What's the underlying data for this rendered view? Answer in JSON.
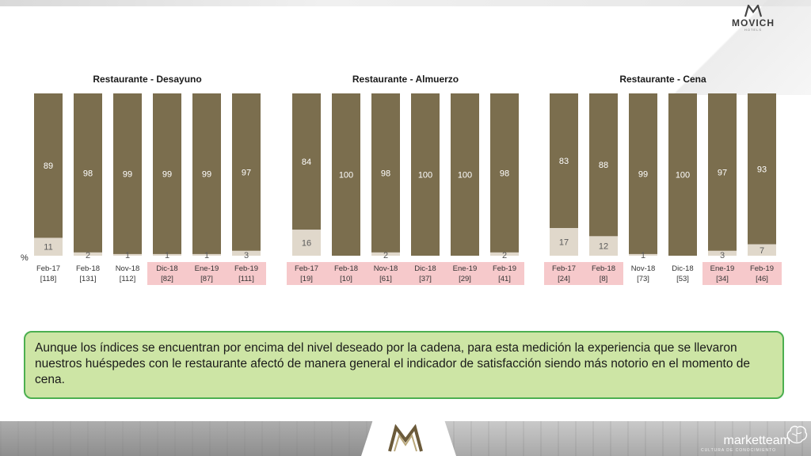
{
  "logo": {
    "brand": "MOVICH",
    "sub": "HOTELS"
  },
  "percent_symbol": "%",
  "footer": {
    "brand": "marketteam",
    "sub": "CULTURA DE CONOCIMIENTO"
  },
  "callout": {
    "text": "Aunque los índices se encuentran por encima del nivel deseado por la cadena, para esta medición la experiencia que se llevaron nuestros huéspedes con le restaurante afectó de manera general el indicador de satisfacción siendo más notorio en el momento de cena."
  },
  "colors": {
    "top": "#7b6e4e",
    "bottom": "#e0d8cb",
    "highlight": "#f6c9cb",
    "callout_bg": "#cde5a5",
    "callout_border": "#4caf50"
  },
  "chart_data": [
    {
      "type": "bar",
      "stacked": true,
      "title": "Restaurante - Desayuno",
      "categories": [
        "Feb-17",
        "Feb-18",
        "Nov-18",
        "Dic-18",
        "Ene-19",
        "Feb-19"
      ],
      "n_labels": [
        "[118]",
        "[131]",
        "[112]",
        "[82]",
        "[87]",
        "[111]"
      ],
      "highlighted": [
        false,
        false,
        false,
        true,
        true,
        true
      ],
      "series": [
        {
          "values": [
            89,
            98,
            99,
            99,
            99,
            97
          ]
        },
        {
          "values": [
            11,
            2,
            1,
            1,
            1,
            3
          ]
        }
      ],
      "ylim": [
        0,
        100
      ]
    },
    {
      "type": "bar",
      "stacked": true,
      "title": "Restaurante - Almuerzo",
      "categories": [
        "Feb-17",
        "Feb-18",
        "Nov-18",
        "Dic-18",
        "Ene-19",
        "Feb-19"
      ],
      "n_labels": [
        "[19]",
        "[10]",
        "[61]",
        "[37]",
        "[29]",
        "[41]"
      ],
      "highlighted": [
        true,
        true,
        true,
        true,
        true,
        true
      ],
      "series": [
        {
          "values": [
            84,
            100,
            98,
            100,
            100,
            98
          ]
        },
        {
          "values": [
            16,
            0,
            2,
            0,
            0,
            2
          ]
        }
      ],
      "ylim": [
        0,
        100
      ]
    },
    {
      "type": "bar",
      "stacked": true,
      "title": "Restaurante - Cena",
      "categories": [
        "Feb-17",
        "Feb-18",
        "Nov-18",
        "Dic-18",
        "Ene-19",
        "Feb-19"
      ],
      "n_labels": [
        "[24]",
        "[8]",
        "[73]",
        "[53]",
        "[34]",
        "[46]"
      ],
      "highlighted": [
        true,
        true,
        false,
        false,
        true,
        true
      ],
      "series": [
        {
          "values": [
            83,
            88,
            99,
            100,
            97,
            93
          ]
        },
        {
          "values": [
            17,
            12,
            1,
            0,
            3,
            7
          ]
        }
      ],
      "ylim": [
        0,
        100
      ]
    }
  ]
}
